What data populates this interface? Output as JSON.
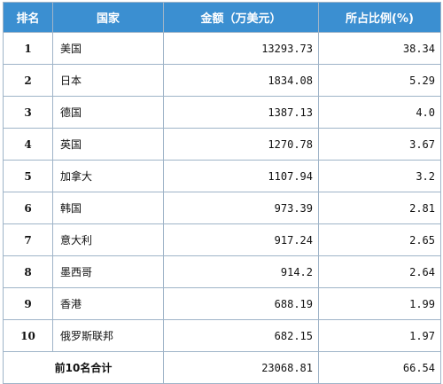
{
  "chart_data": {
    "type": "table",
    "columns": [
      "排名",
      "国家",
      "金额（万美元）",
      "所占比例(%)"
    ],
    "rows": [
      {
        "rank": "1",
        "country": "美国",
        "amount": "13293.73",
        "share": "38.34"
      },
      {
        "rank": "2",
        "country": "日本",
        "amount": "1834.08",
        "share": "5.29"
      },
      {
        "rank": "3",
        "country": "德国",
        "amount": "1387.13",
        "share": "4.0"
      },
      {
        "rank": "4",
        "country": "英国",
        "amount": "1270.78",
        "share": "3.67"
      },
      {
        "rank": "5",
        "country": "加拿大",
        "amount": "1107.94",
        "share": "3.2"
      },
      {
        "rank": "6",
        "country": "韩国",
        "amount": "973.39",
        "share": "2.81"
      },
      {
        "rank": "7",
        "country": "意大利",
        "amount": "917.24",
        "share": "2.65"
      },
      {
        "rank": "8",
        "country": "墨西哥",
        "amount": "914.2",
        "share": "2.64"
      },
      {
        "rank": "9",
        "country": "香港",
        "amount": "688.19",
        "share": "1.99"
      },
      {
        "rank": "10",
        "country": "俄罗斯联邦",
        "amount": "682.15",
        "share": "1.97"
      }
    ],
    "total": {
      "label": "前10名合计",
      "amount": "23068.81",
      "share": "66.54"
    }
  },
  "colors": {
    "header_bg": "#3b8fd1",
    "border": "#9fb4c8"
  }
}
